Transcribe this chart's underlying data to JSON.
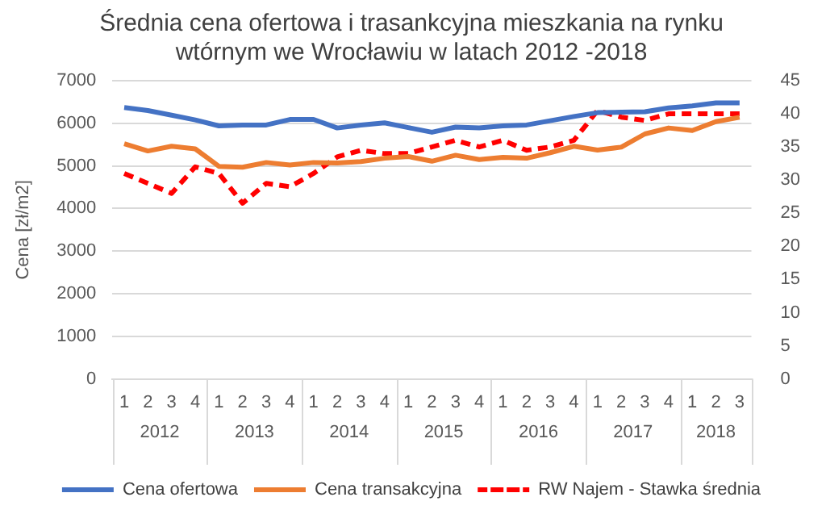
{
  "chart_data": {
    "type": "line",
    "title": "Średnia cena ofertowa i trasankcyjna mieszkania na rynku wtórnym we Wrocławiu w latach 2012 -2018",
    "ylabel": "Cena [zł/m2]",
    "categories": [
      "1",
      "2",
      "3",
      "4",
      "1",
      "2",
      "3",
      "4",
      "1",
      "2",
      "3",
      "4",
      "1",
      "2",
      "3",
      "4",
      "1",
      "2",
      "3",
      "4",
      "1",
      "2",
      "3",
      "4",
      "1",
      "2",
      "3"
    ],
    "annotations": [
      "2012",
      "2013",
      "2014",
      "2015",
      "2016",
      "2017",
      "2018"
    ],
    "series": [
      {
        "name": "Cena ofertowa",
        "color": "#4472c4",
        "values": [
          6370,
          6300,
          6190,
          6080,
          5940,
          5960,
          5960,
          6090,
          6090,
          5890,
          5960,
          6010,
          5900,
          5790,
          5910,
          5890,
          5940,
          5960,
          6060,
          6160,
          6250,
          6260,
          6270,
          6360,
          6410,
          6480,
          6480
        ]
      },
      {
        "name": "Cena transakcyjna",
        "color": "#ed7d31",
        "values": [
          5520,
          5350,
          5460,
          5400,
          4990,
          4970,
          5080,
          5020,
          5080,
          5070,
          5100,
          5180,
          5220,
          5110,
          5250,
          5150,
          5200,
          5180,
          5310,
          5460,
          5370,
          5440,
          5750,
          5890,
          5830,
          6040,
          6140
        ]
      },
      {
        "name": "RW Najem - Stawka średnia",
        "color": "#ff0000",
        "axis": "y2",
        "line_style": "dashed",
        "values": [
          31,
          29.5,
          28,
          32,
          31,
          26.5,
          29.5,
          29,
          31,
          33.5,
          34.5,
          34,
          34,
          35,
          36,
          35,
          36,
          34.5,
          35,
          36,
          40.5,
          39.5,
          39,
          40,
          40,
          40,
          40
        ]
      }
    ],
    "ylim": [
      0,
      7000
    ],
    "yticks": [
      0,
      1000,
      2000,
      3000,
      4000,
      5000,
      6000,
      7000
    ],
    "y2lim": [
      0,
      45
    ],
    "y2ticks": [
      0,
      5,
      10,
      15,
      20,
      25,
      30,
      35,
      40,
      45
    ],
    "grid": "y",
    "legend": "bottom",
    "marker": "none"
  }
}
